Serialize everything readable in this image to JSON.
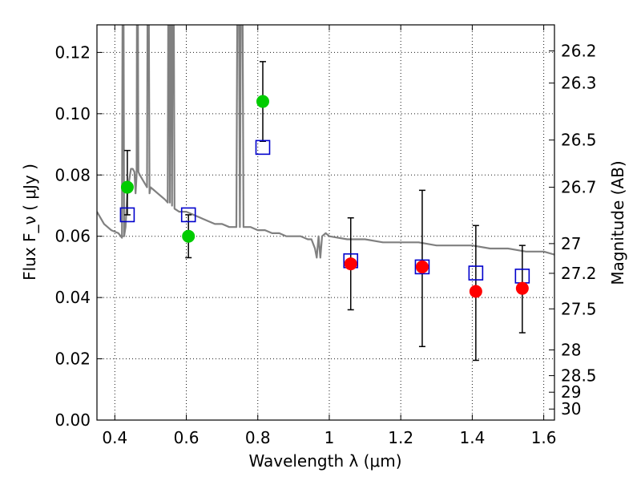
{
  "chart_data": {
    "type": "scatter",
    "xlabel": "Wavelength  λ (μm)",
    "ylabel": "Flux  F_ν  ( μJy )",
    "ylabel_right": "Magnitude (AB)",
    "xlim": [
      0.35,
      1.63
    ],
    "ylim": [
      0.0,
      0.129
    ],
    "grid": true,
    "x_ticks": [
      0.4,
      0.6,
      0.8,
      1.0,
      1.2,
      1.4,
      1.6
    ],
    "x_tick_labels": [
      "0.4",
      "0.6",
      "0.8",
      "1",
      "1.2",
      "1.4",
      "1.6"
    ],
    "y_ticks": [
      0.0,
      0.02,
      0.04,
      0.06,
      0.08,
      0.1,
      0.12
    ],
    "y_tick_labels": [
      "0.00",
      "0.02",
      "0.04",
      "0.06",
      "0.08",
      "0.10",
      "0.12"
    ],
    "right_ticks": [
      {
        "label": "26.2",
        "flux": 0.1205
      },
      {
        "label": "26.3",
        "flux": 0.11
      },
      {
        "label": "26.5",
        "flux": 0.0914
      },
      {
        "label": "26.7",
        "flux": 0.076
      },
      {
        "label": "27",
        "flux": 0.0576
      },
      {
        "label": "27.2",
        "flux": 0.0479
      },
      {
        "label": "27.5",
        "flux": 0.0363
      },
      {
        "label": "28",
        "flux": 0.0229
      },
      {
        "label": "28.5",
        "flux": 0.0145
      },
      {
        "label": "29",
        "flux": 0.0091
      },
      {
        "label": "30",
        "flux": 0.0036
      }
    ],
    "series": [
      {
        "kind": "model_spectrum",
        "color": "#808080",
        "points": [
          [
            0.35,
            0.068
          ],
          [
            0.37,
            0.064
          ],
          [
            0.39,
            0.062
          ],
          [
            0.41,
            0.061
          ],
          [
            0.42,
            0.0595
          ],
          [
            0.423,
            0.2
          ],
          [
            0.426,
            0.06
          ],
          [
            0.43,
            0.063
          ],
          [
            0.435,
            0.074
          ],
          [
            0.44,
            0.078
          ],
          [
            0.445,
            0.082
          ],
          [
            0.45,
            0.082
          ],
          [
            0.455,
            0.081
          ],
          [
            0.458,
            0.074
          ],
          [
            0.461,
            0.08
          ],
          [
            0.463,
            0.2
          ],
          [
            0.466,
            0.081
          ],
          [
            0.47,
            0.08
          ],
          [
            0.48,
            0.078
          ],
          [
            0.49,
            0.076
          ],
          [
            0.493,
            0.2
          ],
          [
            0.497,
            0.074
          ],
          [
            0.5,
            0.076
          ],
          [
            0.51,
            0.075
          ],
          [
            0.52,
            0.074
          ],
          [
            0.53,
            0.073
          ],
          [
            0.54,
            0.072
          ],
          [
            0.548,
            0.071
          ],
          [
            0.551,
            0.2
          ],
          [
            0.554,
            0.071
          ],
          [
            0.557,
            0.2
          ],
          [
            0.56,
            0.07
          ],
          [
            0.563,
            0.2
          ],
          [
            0.567,
            0.069
          ],
          [
            0.58,
            0.068
          ],
          [
            0.6,
            0.068
          ],
          [
            0.62,
            0.067
          ],
          [
            0.64,
            0.066
          ],
          [
            0.66,
            0.065
          ],
          [
            0.68,
            0.064
          ],
          [
            0.7,
            0.064
          ],
          [
            0.72,
            0.063
          ],
          [
            0.74,
            0.063
          ],
          [
            0.745,
            0.2
          ],
          [
            0.75,
            0.063
          ],
          [
            0.755,
            0.2
          ],
          [
            0.76,
            0.063
          ],
          [
            0.78,
            0.063
          ],
          [
            0.8,
            0.062
          ],
          [
            0.82,
            0.062
          ],
          [
            0.84,
            0.061
          ],
          [
            0.86,
            0.061
          ],
          [
            0.88,
            0.06
          ],
          [
            0.9,
            0.06
          ],
          [
            0.92,
            0.06
          ],
          [
            0.94,
            0.059
          ],
          [
            0.95,
            0.059
          ],
          [
            0.96,
            0.056
          ],
          [
            0.965,
            0.053
          ],
          [
            0.97,
            0.06
          ],
          [
            0.975,
            0.053
          ],
          [
            0.98,
            0.06
          ],
          [
            0.99,
            0.061
          ],
          [
            1.0,
            0.06
          ],
          [
            1.05,
            0.059
          ],
          [
            1.1,
            0.059
          ],
          [
            1.15,
            0.058
          ],
          [
            1.2,
            0.058
          ],
          [
            1.25,
            0.058
          ],
          [
            1.3,
            0.057
          ],
          [
            1.35,
            0.057
          ],
          [
            1.4,
            0.057
          ],
          [
            1.45,
            0.056
          ],
          [
            1.5,
            0.056
          ],
          [
            1.55,
            0.055
          ],
          [
            1.6,
            0.055
          ],
          [
            1.63,
            0.054
          ]
        ]
      },
      {
        "kind": "model_photometry",
        "marker": "square",
        "color": "#0000cc",
        "points": [
          [
            0.435,
            0.067
          ],
          [
            0.606,
            0.067
          ],
          [
            0.814,
            0.089
          ],
          [
            1.06,
            0.052
          ],
          [
            1.26,
            0.05
          ],
          [
            1.41,
            0.048
          ],
          [
            1.54,
            0.047
          ]
        ]
      },
      {
        "kind": "observed_green",
        "marker": "circle",
        "color": "#00cc00",
        "points": [
          {
            "x": 0.435,
            "y": 0.076,
            "lo": 0.067,
            "hi": 0.088
          },
          {
            "x": 0.606,
            "y": 0.06,
            "lo": 0.053,
            "hi": 0.067
          },
          {
            "x": 0.814,
            "y": 0.104,
            "lo": 0.091,
            "hi": 0.117
          }
        ]
      },
      {
        "kind": "observed_red",
        "marker": "circle",
        "color": "#ff0000",
        "points": [
          {
            "x": 1.06,
            "y": 0.051,
            "lo": 0.036,
            "hi": 0.066
          },
          {
            "x": 1.26,
            "y": 0.05,
            "lo": 0.024,
            "hi": 0.075
          },
          {
            "x": 1.41,
            "y": 0.042,
            "lo": 0.0195,
            "hi": 0.0635
          },
          {
            "x": 1.54,
            "y": 0.043,
            "lo": 0.0285,
            "hi": 0.057
          }
        ]
      }
    ]
  }
}
